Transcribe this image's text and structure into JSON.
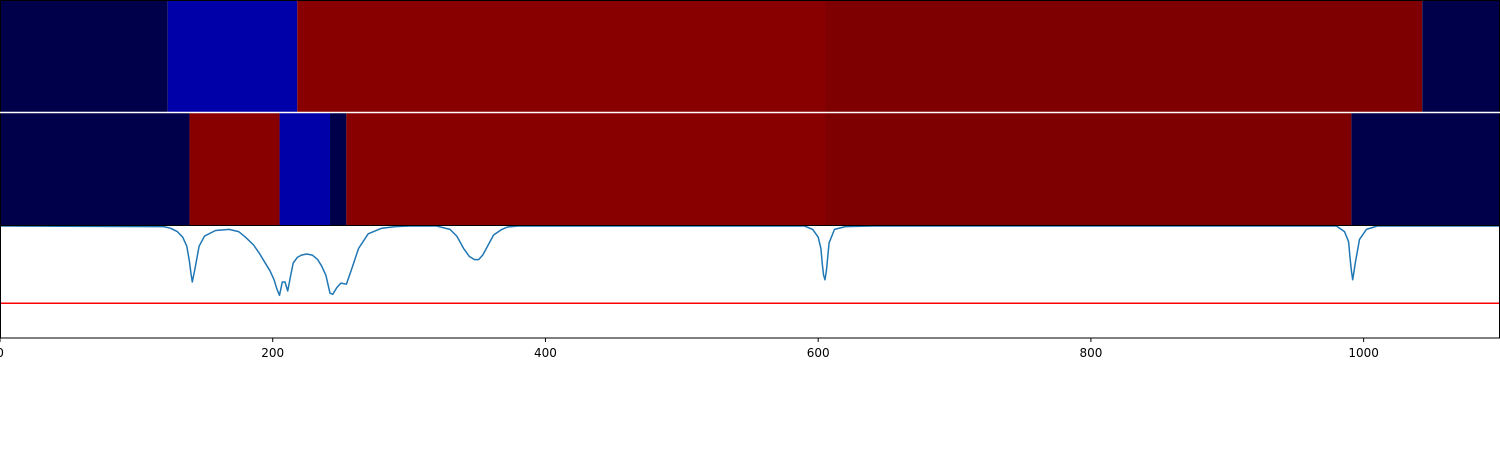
{
  "chart_data": [
    {
      "type": "heatmap",
      "row": "top",
      "xlim": [
        0,
        1100
      ],
      "segments": [
        {
          "start": 0,
          "end": 123,
          "color": "#00004a"
        },
        {
          "start": 123,
          "end": 218,
          "color": "#0000a8"
        },
        {
          "start": 218,
          "end": 605,
          "color": "#880000"
        },
        {
          "start": 605,
          "end": 1043,
          "color": "#7e0000"
        },
        {
          "start": 1043,
          "end": 1100,
          "color": "#00004a"
        }
      ]
    },
    {
      "type": "heatmap",
      "row": "middle",
      "xlim": [
        0,
        1100
      ],
      "segments": [
        {
          "start": 0,
          "end": 139,
          "color": "#00004a"
        },
        {
          "start": 139,
          "end": 205,
          "color": "#880000"
        },
        {
          "start": 205,
          "end": 242,
          "color": "#0000a8"
        },
        {
          "start": 242,
          "end": 254,
          "color": "#00004a"
        },
        {
          "start": 254,
          "end": 605,
          "color": "#880000"
        },
        {
          "start": 605,
          "end": 991,
          "color": "#7e0000"
        },
        {
          "start": 991,
          "end": 1100,
          "color": "#00004a"
        }
      ]
    },
    {
      "type": "line",
      "xlim": [
        0,
        1100
      ],
      "ylim": [
        0,
        1
      ],
      "x_ticks": [
        0,
        200,
        400,
        600,
        800,
        1000
      ],
      "tick_labels": [
        "0",
        "200",
        "400",
        "600",
        "800",
        "1000"
      ],
      "threshold": 0.31,
      "series": [
        {
          "color": "#1f77b4",
          "x": [
            0,
            120,
            125,
            130,
            134,
            137,
            139,
            140,
            141,
            143,
            146,
            150,
            158,
            168,
            175,
            180,
            186,
            190,
            194,
            198,
            201,
            203,
            205,
            207,
            209,
            211,
            213,
            215,
            218,
            221,
            225,
            229,
            233,
            236,
            239,
            242,
            244,
            247,
            250,
            254,
            258,
            263,
            270,
            280,
            290,
            300,
            320,
            330,
            335,
            340,
            344,
            348,
            351,
            354,
            358,
            362,
            368,
            372,
            380,
            400,
            590,
            596,
            600,
            602,
            603,
            604,
            605,
            606,
            608,
            612,
            620,
            640,
            980,
            986,
            989,
            990,
            991,
            992,
            994,
            997,
            1002,
            1010,
            1100
          ],
          "y": [
            1.0,
            0.995,
            0.98,
            0.95,
            0.9,
            0.82,
            0.68,
            0.58,
            0.5,
            0.62,
            0.82,
            0.91,
            0.96,
            0.97,
            0.95,
            0.9,
            0.83,
            0.76,
            0.68,
            0.6,
            0.52,
            0.44,
            0.38,
            0.5,
            0.5,
            0.42,
            0.55,
            0.67,
            0.72,
            0.74,
            0.75,
            0.74,
            0.7,
            0.64,
            0.56,
            0.4,
            0.39,
            0.45,
            0.49,
            0.48,
            0.62,
            0.8,
            0.93,
            0.98,
            0.995,
            1.0,
            1.0,
            0.97,
            0.91,
            0.8,
            0.73,
            0.7,
            0.7,
            0.74,
            0.83,
            0.92,
            0.97,
            0.99,
            1.0,
            1.0,
            1.0,
            0.97,
            0.9,
            0.8,
            0.66,
            0.56,
            0.52,
            0.6,
            0.85,
            0.97,
            0.995,
            1.0,
            1.0,
            0.95,
            0.86,
            0.72,
            0.6,
            0.52,
            0.68,
            0.88,
            0.97,
            1.0,
            1.0
          ]
        }
      ]
    }
  ]
}
